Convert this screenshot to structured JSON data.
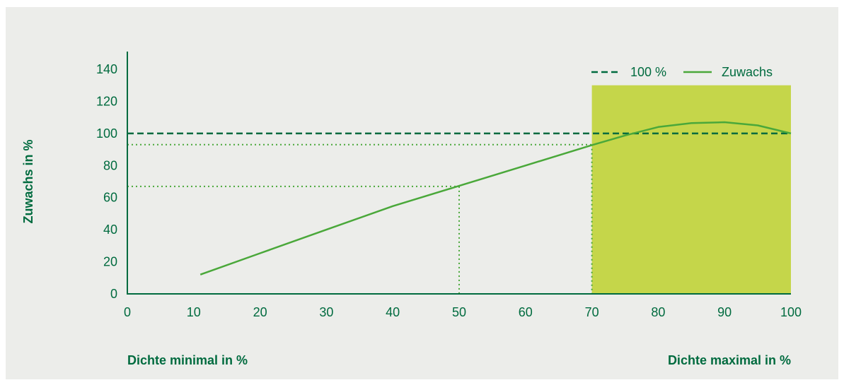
{
  "colors": {
    "background": "#ecedea",
    "axis": "#006b3f",
    "text": "#006b3f",
    "reference_line": "#006b3f",
    "growth_line": "#4aa83a",
    "helper_lines": "#4aa83a",
    "optimum_band": "#c5d64a"
  },
  "chart_data": {
    "type": "line",
    "xlabel_left": "Dichte minimal in %",
    "xlabel_right": "Dichte maximal in %",
    "ylabel": "Zuwachs in %",
    "xlim": [
      0,
      100
    ],
    "ylim": [
      0,
      140
    ],
    "x_ticks": [
      0,
      10,
      20,
      30,
      40,
      50,
      60,
      70,
      80,
      90,
      100
    ],
    "y_ticks": [
      0,
      20,
      40,
      60,
      80,
      100,
      120,
      140
    ],
    "grid": false,
    "legend_position": "top-right",
    "series": [
      {
        "name": "100 %",
        "style": "dashed",
        "x": [
          0,
          100
        ],
        "y": [
          100,
          100
        ]
      },
      {
        "name": "Zuwachs",
        "style": "solid",
        "x": [
          11,
          20,
          30,
          40,
          50,
          60,
          70,
          75,
          80,
          85,
          90,
          95,
          100
        ],
        "y": [
          12,
          25.3,
          40,
          54.7,
          67.3,
          80,
          92.7,
          98.7,
          104,
          106.4,
          107,
          105,
          100
        ]
      }
    ],
    "helper_lines": [
      {
        "x": 50,
        "y": 67
      },
      {
        "x": 70,
        "y": 93
      }
    ],
    "shaded_region": {
      "x": [
        70,
        100
      ],
      "y": [
        0,
        130
      ]
    }
  }
}
